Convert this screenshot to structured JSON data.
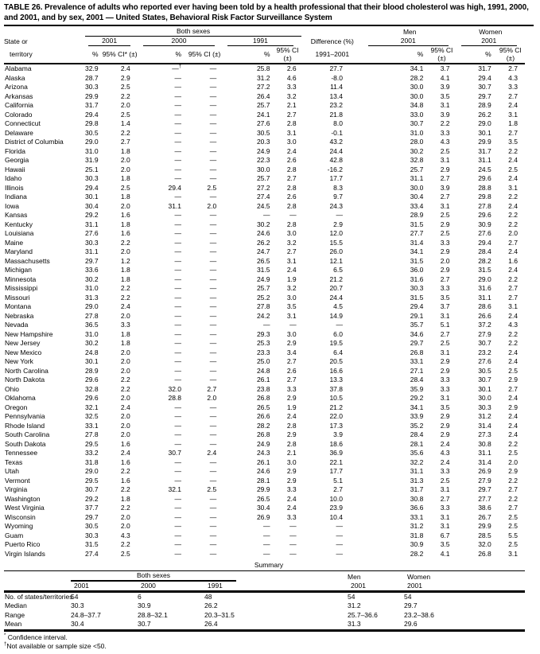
{
  "title": "TABLE 26. Prevalence of adults who reported ever having been told by a health professional that their blood cholesterol was high, 1991, 2000, and 2001, and by sex, 2001 — United States, Behavioral Risk Factor Surveillance System",
  "table": {
    "headers": {
      "state_line1": "State or",
      "state_line2": "territory",
      "both_sexes": "Both sexes",
      "men": "Men",
      "women": "Women",
      "year_2001": "2001",
      "year_2000": "2000",
      "year_1991": "1991",
      "difference": "Difference (%)",
      "difference_sub": "1991–2001",
      "pct": "%",
      "ci_star": "95% CI* (±)",
      "ci": "95% CI (±)"
    },
    "rows": [
      [
        "Alabama",
        "32.9",
        "2.4",
        "—†",
        "—",
        "25.8",
        "2.6",
        "27.7",
        "34.1",
        "3.7",
        "31.7",
        "2.7"
      ],
      [
        "Alaska",
        "28.7",
        "2.9",
        "—",
        "—",
        "31.2",
        "4.6",
        "-8.0",
        "28.2",
        "4.1",
        "29.4",
        "4.3"
      ],
      [
        "Arizona",
        "30.3",
        "2.5",
        "—",
        "—",
        "27.2",
        "3.3",
        "11.4",
        "30.0",
        "3.9",
        "30.7",
        "3.3"
      ],
      [
        "Arkansas",
        "29.9",
        "2.2",
        "—",
        "—",
        "26.4",
        "3.2",
        "13.4",
        "30.0",
        "3.5",
        "29.7",
        "2.7"
      ],
      [
        "California",
        "31.7",
        "2.0",
        "—",
        "—",
        "25.7",
        "2.1",
        "23.2",
        "34.8",
        "3.1",
        "28.9",
        "2.4"
      ],
      [
        "Colorado",
        "29.4",
        "2.5",
        "—",
        "—",
        "24.1",
        "2.7",
        "21.8",
        "33.0",
        "3.9",
        "26.2",
        "3.1"
      ],
      [
        "Connecticut",
        "29.8",
        "1.4",
        "—",
        "—",
        "27.6",
        "2.8",
        "8.0",
        "30.7",
        "2.2",
        "29.0",
        "1.8"
      ],
      [
        "Delaware",
        "30.5",
        "2.2",
        "—",
        "—",
        "30.5",
        "3.1",
        "-0.1",
        "31.0",
        "3.3",
        "30.1",
        "2.7"
      ],
      [
        "District of Columbia",
        "29.0",
        "2.7",
        "—",
        "—",
        "20.3",
        "3.0",
        "43.2",
        "28.0",
        "4.3",
        "29.9",
        "3.5"
      ],
      [
        "Florida",
        "31.0",
        "1.8",
        "—",
        "—",
        "24.9",
        "2.4",
        "24.4",
        "30.2",
        "2.5",
        "31.7",
        "2.2"
      ],
      [
        "Georgia",
        "31.9",
        "2.0",
        "—",
        "—",
        "22.3",
        "2.6",
        "42.8",
        "32.8",
        "3.1",
        "31.1",
        "2.4"
      ],
      [
        "Hawaii",
        "25.1",
        "2.0",
        "—",
        "—",
        "30.0",
        "2.8",
        "-16.2",
        "25.7",
        "2.9",
        "24.5",
        "2.5"
      ],
      [
        "Idaho",
        "30.3",
        "1.8",
        "—",
        "—",
        "25.7",
        "2.7",
        "17.7",
        "31.1",
        "2.7",
        "29.6",
        "2.4"
      ],
      [
        "Illinois",
        "29.4",
        "2.5",
        "29.4",
        "2.5",
        "27.2",
        "2.8",
        "8.3",
        "30.0",
        "3.9",
        "28.8",
        "3.1"
      ],
      [
        "Indiana",
        "30.1",
        "1.8",
        "—",
        "—",
        "27.4",
        "2.6",
        "9.7",
        "30.4",
        "2.7",
        "29.8",
        "2.2"
      ],
      [
        "Iowa",
        "30.4",
        "2.0",
        "31.1",
        "2.0",
        "24.5",
        "2.8",
        "24.3",
        "33.4",
        "3.1",
        "27.8",
        "2.4"
      ],
      [
        "Kansas",
        "29.2",
        "1.6",
        "—",
        "—",
        "—",
        "—",
        "—",
        "28.9",
        "2.5",
        "29.6",
        "2.2"
      ],
      [
        "Kentucky",
        "31.1",
        "1.8",
        "—",
        "—",
        "30.2",
        "2.8",
        "2.9",
        "31.5",
        "2.9",
        "30.9",
        "2.2"
      ],
      [
        "Louisiana",
        "27.6",
        "1.6",
        "—",
        "—",
        "24.6",
        "3.0",
        "12.0",
        "27.7",
        "2.5",
        "27.6",
        "2.0"
      ],
      [
        "Maine",
        "30.3",
        "2.2",
        "—",
        "—",
        "26.2",
        "3.2",
        "15.5",
        "31.4",
        "3.3",
        "29.4",
        "2.7"
      ],
      [
        "Maryland",
        "31.1",
        "2.0",
        "—",
        "—",
        "24.7",
        "2.7",
        "26.0",
        "34.1",
        "2.9",
        "28.4",
        "2.4"
      ],
      [
        "Massachusetts",
        "29.7",
        "1.2",
        "—",
        "—",
        "26.5",
        "3.1",
        "12.1",
        "31.5",
        "2.0",
        "28.2",
        "1.6"
      ],
      [
        "Michigan",
        "33.6",
        "1.8",
        "—",
        "—",
        "31.5",
        "2.4",
        "6.5",
        "36.0",
        "2.9",
        "31.5",
        "2.4"
      ],
      [
        "Minnesota",
        "30.2",
        "1.8",
        "—",
        "—",
        "24.9",
        "1.9",
        "21.2",
        "31.6",
        "2.7",
        "29.0",
        "2.2"
      ],
      [
        "Mississippi",
        "31.0",
        "2.2",
        "—",
        "—",
        "25.7",
        "3.2",
        "20.7",
        "30.3",
        "3.3",
        "31.6",
        "2.7"
      ],
      [
        "Missouri",
        "31.3",
        "2.2",
        "—",
        "—",
        "25.2",
        "3.0",
        "24.4",
        "31.5",
        "3.5",
        "31.1",
        "2.7"
      ],
      [
        "Montana",
        "29.0",
        "2.4",
        "—",
        "—",
        "27.8",
        "3.5",
        "4.5",
        "29.4",
        "3.7",
        "28.6",
        "3.1"
      ],
      [
        "Nebraska",
        "27.8",
        "2.0",
        "—",
        "—",
        "24.2",
        "3.1",
        "14.9",
        "29.1",
        "3.1",
        "26.6",
        "2.4"
      ],
      [
        "Nevada",
        "36.5",
        "3.3",
        "—",
        "—",
        "—",
        "—",
        "—",
        "35.7",
        "5.1",
        "37.2",
        "4.3"
      ],
      [
        "New Hampshire",
        "31.0",
        "1.8",
        "—",
        "—",
        "29.3",
        "3.0",
        "6.0",
        "34.6",
        "2.7",
        "27.9",
        "2.2"
      ],
      [
        "New Jersey",
        "30.2",
        "1.8",
        "—",
        "—",
        "25.3",
        "2.9",
        "19.5",
        "29.7",
        "2.5",
        "30.7",
        "2.2"
      ],
      [
        "New Mexico",
        "24.8",
        "2.0",
        "—",
        "—",
        "23.3",
        "3.4",
        "6.4",
        "26.8",
        "3.1",
        "23.2",
        "2.4"
      ],
      [
        "New York",
        "30.1",
        "2.0",
        "—",
        "—",
        "25.0",
        "2.7",
        "20.5",
        "33.1",
        "2.9",
        "27.6",
        "2.4"
      ],
      [
        "North Carolina",
        "28.9",
        "2.0",
        "—",
        "—",
        "24.8",
        "2.6",
        "16.6",
        "27.1",
        "2.9",
        "30.5",
        "2.5"
      ],
      [
        "North Dakota",
        "29.6",
        "2.2",
        "—",
        "—",
        "26.1",
        "2.7",
        "13.3",
        "28.4",
        "3.3",
        "30.7",
        "2.9"
      ],
      [
        "Ohio",
        "32.8",
        "2.2",
        "32.0",
        "2.7",
        "23.8",
        "3.3",
        "37.8",
        "35.9",
        "3.3",
        "30.1",
        "2.7"
      ],
      [
        "Oklahoma",
        "29.6",
        "2.0",
        "28.8",
        "2.0",
        "26.8",
        "2.9",
        "10.5",
        "29.2",
        "3.1",
        "30.0",
        "2.4"
      ],
      [
        "Oregon",
        "32.1",
        "2.4",
        "—",
        "—",
        "26.5",
        "1.9",
        "21.2",
        "34.1",
        "3.5",
        "30.3",
        "2.9"
      ],
      [
        "Pennsylvania",
        "32.5",
        "2.0",
        "—",
        "—",
        "26.6",
        "2.4",
        "22.0",
        "33.9",
        "2.9",
        "31.2",
        "2.4"
      ],
      [
        "Rhode Island",
        "33.1",
        "2.0",
        "—",
        "—",
        "28.2",
        "2.8",
        "17.3",
        "35.2",
        "2.9",
        "31.4",
        "2.4"
      ],
      [
        "South Carolina",
        "27.8",
        "2.0",
        "—",
        "—",
        "26.8",
        "2.9",
        "3.9",
        "28.4",
        "2.9",
        "27.3",
        "2.4"
      ],
      [
        "South Dakota",
        "29.5",
        "1.6",
        "—",
        "—",
        "24.9",
        "2.8",
        "18.6",
        "28.1",
        "2.4",
        "30.8",
        "2.2"
      ],
      [
        "Tennessee",
        "33.2",
        "2.4",
        "30.7",
        "2.4",
        "24.3",
        "2.1",
        "36.9",
        "35.6",
        "4.3",
        "31.1",
        "2.5"
      ],
      [
        "Texas",
        "31.8",
        "1.6",
        "—",
        "—",
        "26.1",
        "3.0",
        "22.1",
        "32.2",
        "2.4",
        "31.4",
        "2.0"
      ],
      [
        "Utah",
        "29.0",
        "2.2",
        "—",
        "—",
        "24.6",
        "2.9",
        "17.7",
        "31.1",
        "3.3",
        "26.9",
        "2.9"
      ],
      [
        "Vermont",
        "29.5",
        "1.6",
        "—",
        "—",
        "28.1",
        "2.9",
        "5.1",
        "31.3",
        "2.5",
        "27.9",
        "2.2"
      ],
      [
        "Virginia",
        "30.7",
        "2.2",
        "32.1",
        "2.5",
        "29.9",
        "3.3",
        "2.7",
        "31.7",
        "3.1",
        "29.7",
        "2.7"
      ],
      [
        "Washington",
        "29.2",
        "1.8",
        "—",
        "—",
        "26.5",
        "2.4",
        "10.0",
        "30.8",
        "2.7",
        "27.7",
        "2.2"
      ],
      [
        "West Virginia",
        "37.7",
        "2.2",
        "—",
        "—",
        "30.4",
        "2.4",
        "23.9",
        "36.6",
        "3.3",
        "38.6",
        "2.7"
      ],
      [
        "Wisconsin",
        "29.7",
        "2.0",
        "—",
        "—",
        "26.9",
        "3.3",
        "10.4",
        "33.1",
        "3.1",
        "26.7",
        "2.5"
      ],
      [
        "Wyoming",
        "30.5",
        "2.0",
        "—",
        "—",
        "—",
        "—",
        "—",
        "31.2",
        "3.1",
        "29.9",
        "2.5"
      ],
      [
        "Guam",
        "30.3",
        "4.3",
        "—",
        "—",
        "—",
        "—",
        "—",
        "31.8",
        "6.7",
        "28.5",
        "5.5"
      ],
      [
        "Puerto Rico",
        "31.5",
        "2.2",
        "—",
        "—",
        "—",
        "—",
        "—",
        "30.9",
        "3.5",
        "32.0",
        "2.5"
      ],
      [
        "Virgin Islands",
        "27.4",
        "2.5",
        "—",
        "—",
        "—",
        "—",
        "—",
        "28.2",
        "4.1",
        "26.8",
        "3.1"
      ]
    ]
  },
  "summary": {
    "title": "Summary",
    "both_sexes": "Both sexes",
    "men": "Men",
    "women": "Women",
    "year_2001": "2001",
    "year_2000": "2000",
    "year_1991": "1991",
    "rows": [
      {
        "label": "No. of states/territories",
        "values": [
          "54",
          "6",
          "48",
          "54",
          "54"
        ]
      },
      {
        "label": "Median",
        "values": [
          "30.3",
          "30.9",
          "26.2",
          "31.2",
          "29.7"
        ]
      },
      {
        "label": "Range",
        "values": [
          "24.8–37.7",
          "28.8–32.1",
          "20.3–31.5",
          "25.7–36.6",
          "23.2–38.6"
        ]
      },
      {
        "label": "Mean",
        "values": [
          "30.4",
          "30.7",
          "26.4",
          "31.3",
          "29.6"
        ]
      }
    ]
  },
  "footnotes": [
    {
      "marker": "*",
      "text": "Confidence interval."
    },
    {
      "marker": "†",
      "text": "Not available or sample size <50."
    }
  ]
}
